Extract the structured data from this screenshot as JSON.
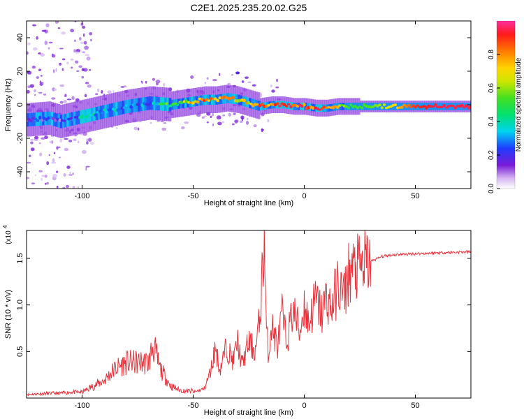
{
  "chart_data": [
    {
      "type": "heatmap",
      "title": "C2E1.2025.235.20.02.G25",
      "xlabel": "Height of straight line (km)",
      "ylabel": "Frequency (Hz)",
      "xlim": [
        -125,
        75
      ],
      "ylim": [
        -50,
        50
      ],
      "xticks": [
        -100,
        -50,
        0,
        50
      ],
      "yticks": [
        -40,
        -20,
        0,
        20,
        40
      ],
      "colorbar": {
        "label": "Normalized spectral amplitude",
        "range": [
          0,
          1
        ],
        "ticks": [
          0.0,
          0.2,
          0.4,
          0.6,
          0.8
        ],
        "tick_labels": [
          "0.0",
          "0.2",
          "0.4",
          "0.6",
          "0.8"
        ]
      },
      "ridge": {
        "height_km": [
          -125,
          -115,
          -110,
          -100,
          -90,
          -80,
          -70,
          -60,
          -55,
          -50,
          -45,
          -40,
          -35,
          -30,
          -25,
          -20,
          -15,
          -10,
          -5,
          0,
          5,
          10,
          15,
          20,
          30,
          40,
          50,
          60,
          75
        ],
        "frequency_hz": [
          -9,
          -8,
          -10,
          -7,
          -4,
          -1,
          1,
          0,
          1,
          2,
          3,
          3,
          4,
          3,
          1,
          -1,
          0,
          0,
          -1,
          -1,
          -2,
          -2,
          -1,
          -1,
          -1,
          -1,
          -1,
          -1,
          -1
        ],
        "amplitude": [
          0.2,
          0.2,
          0.2,
          0.3,
          0.35,
          0.3,
          0.3,
          0.5,
          0.6,
          0.7,
          0.8,
          0.75,
          0.8,
          0.7,
          0.7,
          0.85,
          0.8,
          0.85,
          0.85,
          0.85,
          0.85,
          0.85,
          0.75,
          0.5,
          0.55,
          0.7,
          0.9,
          0.95,
          0.95
        ]
      }
    },
    {
      "type": "line",
      "xlabel": "Height of straight line (km)",
      "ylabel": "SNR (10 * v/v)",
      "scale_label": "(x10",
      "scale_exponent": "4",
      "xlim": [
        -125,
        75
      ],
      "ylim": [
        0,
        1.8
      ],
      "xticks": [
        -100,
        -50,
        0,
        50
      ],
      "yticks": [
        0.5,
        1.0,
        1.5
      ],
      "ytick_labels": [
        "0.5",
        "1.0",
        "1.5"
      ],
      "color": "#e8323c",
      "series": [
        {
          "name": "SNR",
          "x": [
            -125,
            -115,
            -110,
            -105,
            -100,
            -95,
            -90,
            -85,
            -80,
            -75,
            -70,
            -68,
            -65,
            -60,
            -55,
            -50,
            -45,
            -42,
            -40,
            -38,
            -35,
            -32,
            -30,
            -28,
            -25,
            -22,
            -20,
            -18,
            -17,
            -16,
            -15,
            -12,
            -10,
            -8,
            -5,
            -2,
            0,
            2,
            5,
            8,
            10,
            12,
            15,
            18,
            20,
            25,
            30,
            35,
            40,
            50,
            60,
            75
          ],
          "y": [
            0.03,
            0.04,
            0.04,
            0.05,
            0.05,
            0.1,
            0.15,
            0.25,
            0.3,
            0.3,
            0.3,
            0.45,
            0.25,
            0.1,
            0.06,
            0.06,
            0.1,
            0.3,
            0.55,
            0.3,
            0.55,
            0.4,
            0.6,
            0.35,
            0.6,
            0.5,
            0.85,
            1.7,
            0.7,
            0.45,
            0.8,
            0.55,
            0.9,
            0.6,
            0.95,
            0.7,
            1.0,
            0.8,
            1.05,
            0.9,
            1.1,
            0.95,
            1.2,
            1.1,
            1.35,
            1.4,
            1.47,
            1.52,
            1.54,
            1.55,
            1.56,
            1.57
          ]
        }
      ]
    }
  ]
}
